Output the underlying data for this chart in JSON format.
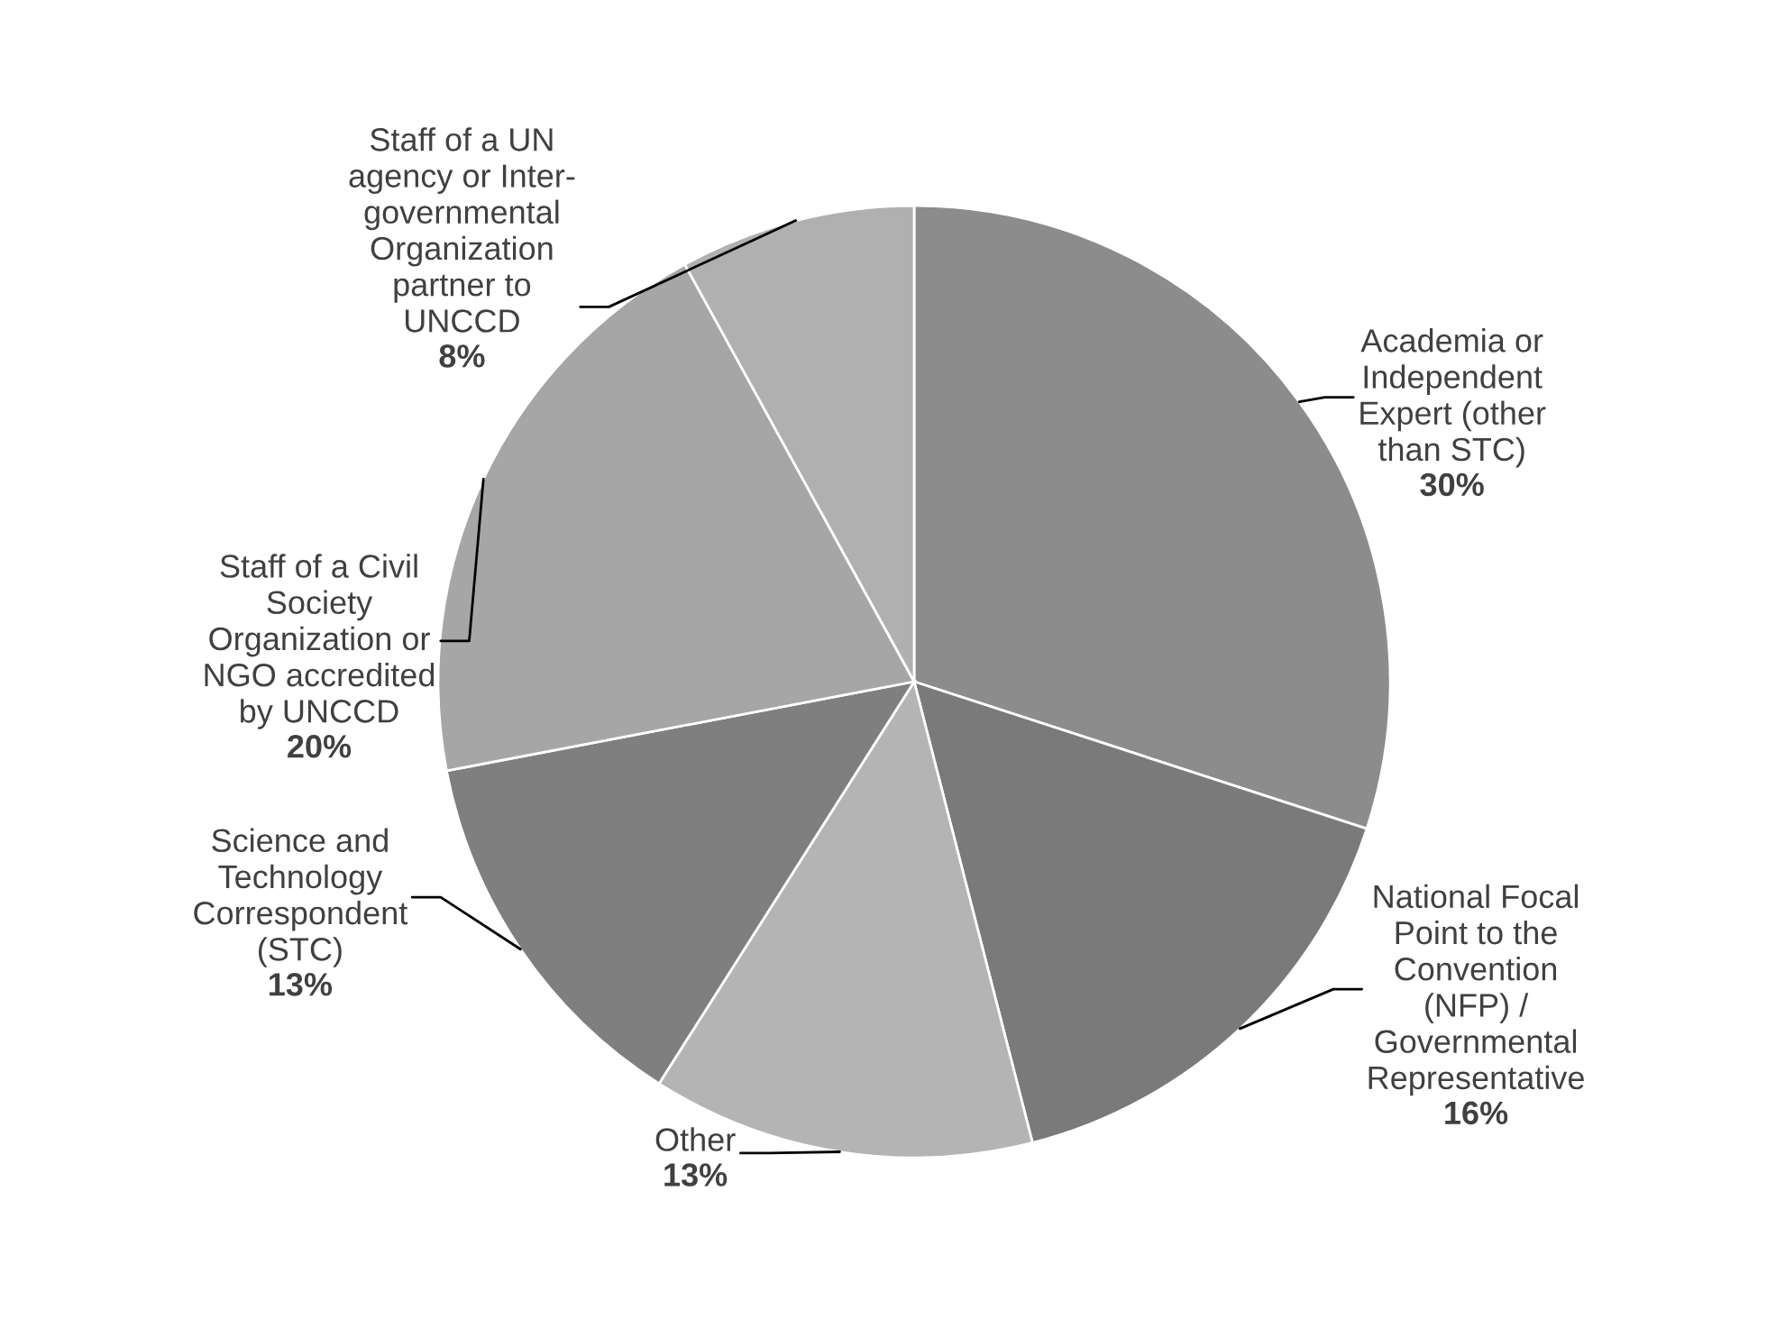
{
  "chart_data": {
    "type": "pie",
    "categories": [
      "Academia or\nIndependent\nExpert (other\nthan STC)",
      "National Focal\nPoint to the\nConvention\n(NFP) /\nGovernmental\nRepresentative",
      "Other",
      "Science and\nTechnology\nCorrespondent\n(STC)",
      "Staff of a Civil\nSociety\nOrganization or\nNGO accredited\nby UNCCD",
      "Staff of a UN\nagency or Inter-\ngovernmental\nOrganization\npartner to\nUNCCD"
    ],
    "values": [
      30,
      16,
      13,
      13,
      20,
      8
    ],
    "value_labels": [
      "30%",
      "16%",
      "13%",
      "13%",
      "20%",
      "8%"
    ],
    "colors": [
      "#8c8c8c",
      "#7a7a7a",
      "#b4b4b4",
      "#7f7f7f",
      "#a6a6a6",
      "#b0b0b0"
    ]
  }
}
